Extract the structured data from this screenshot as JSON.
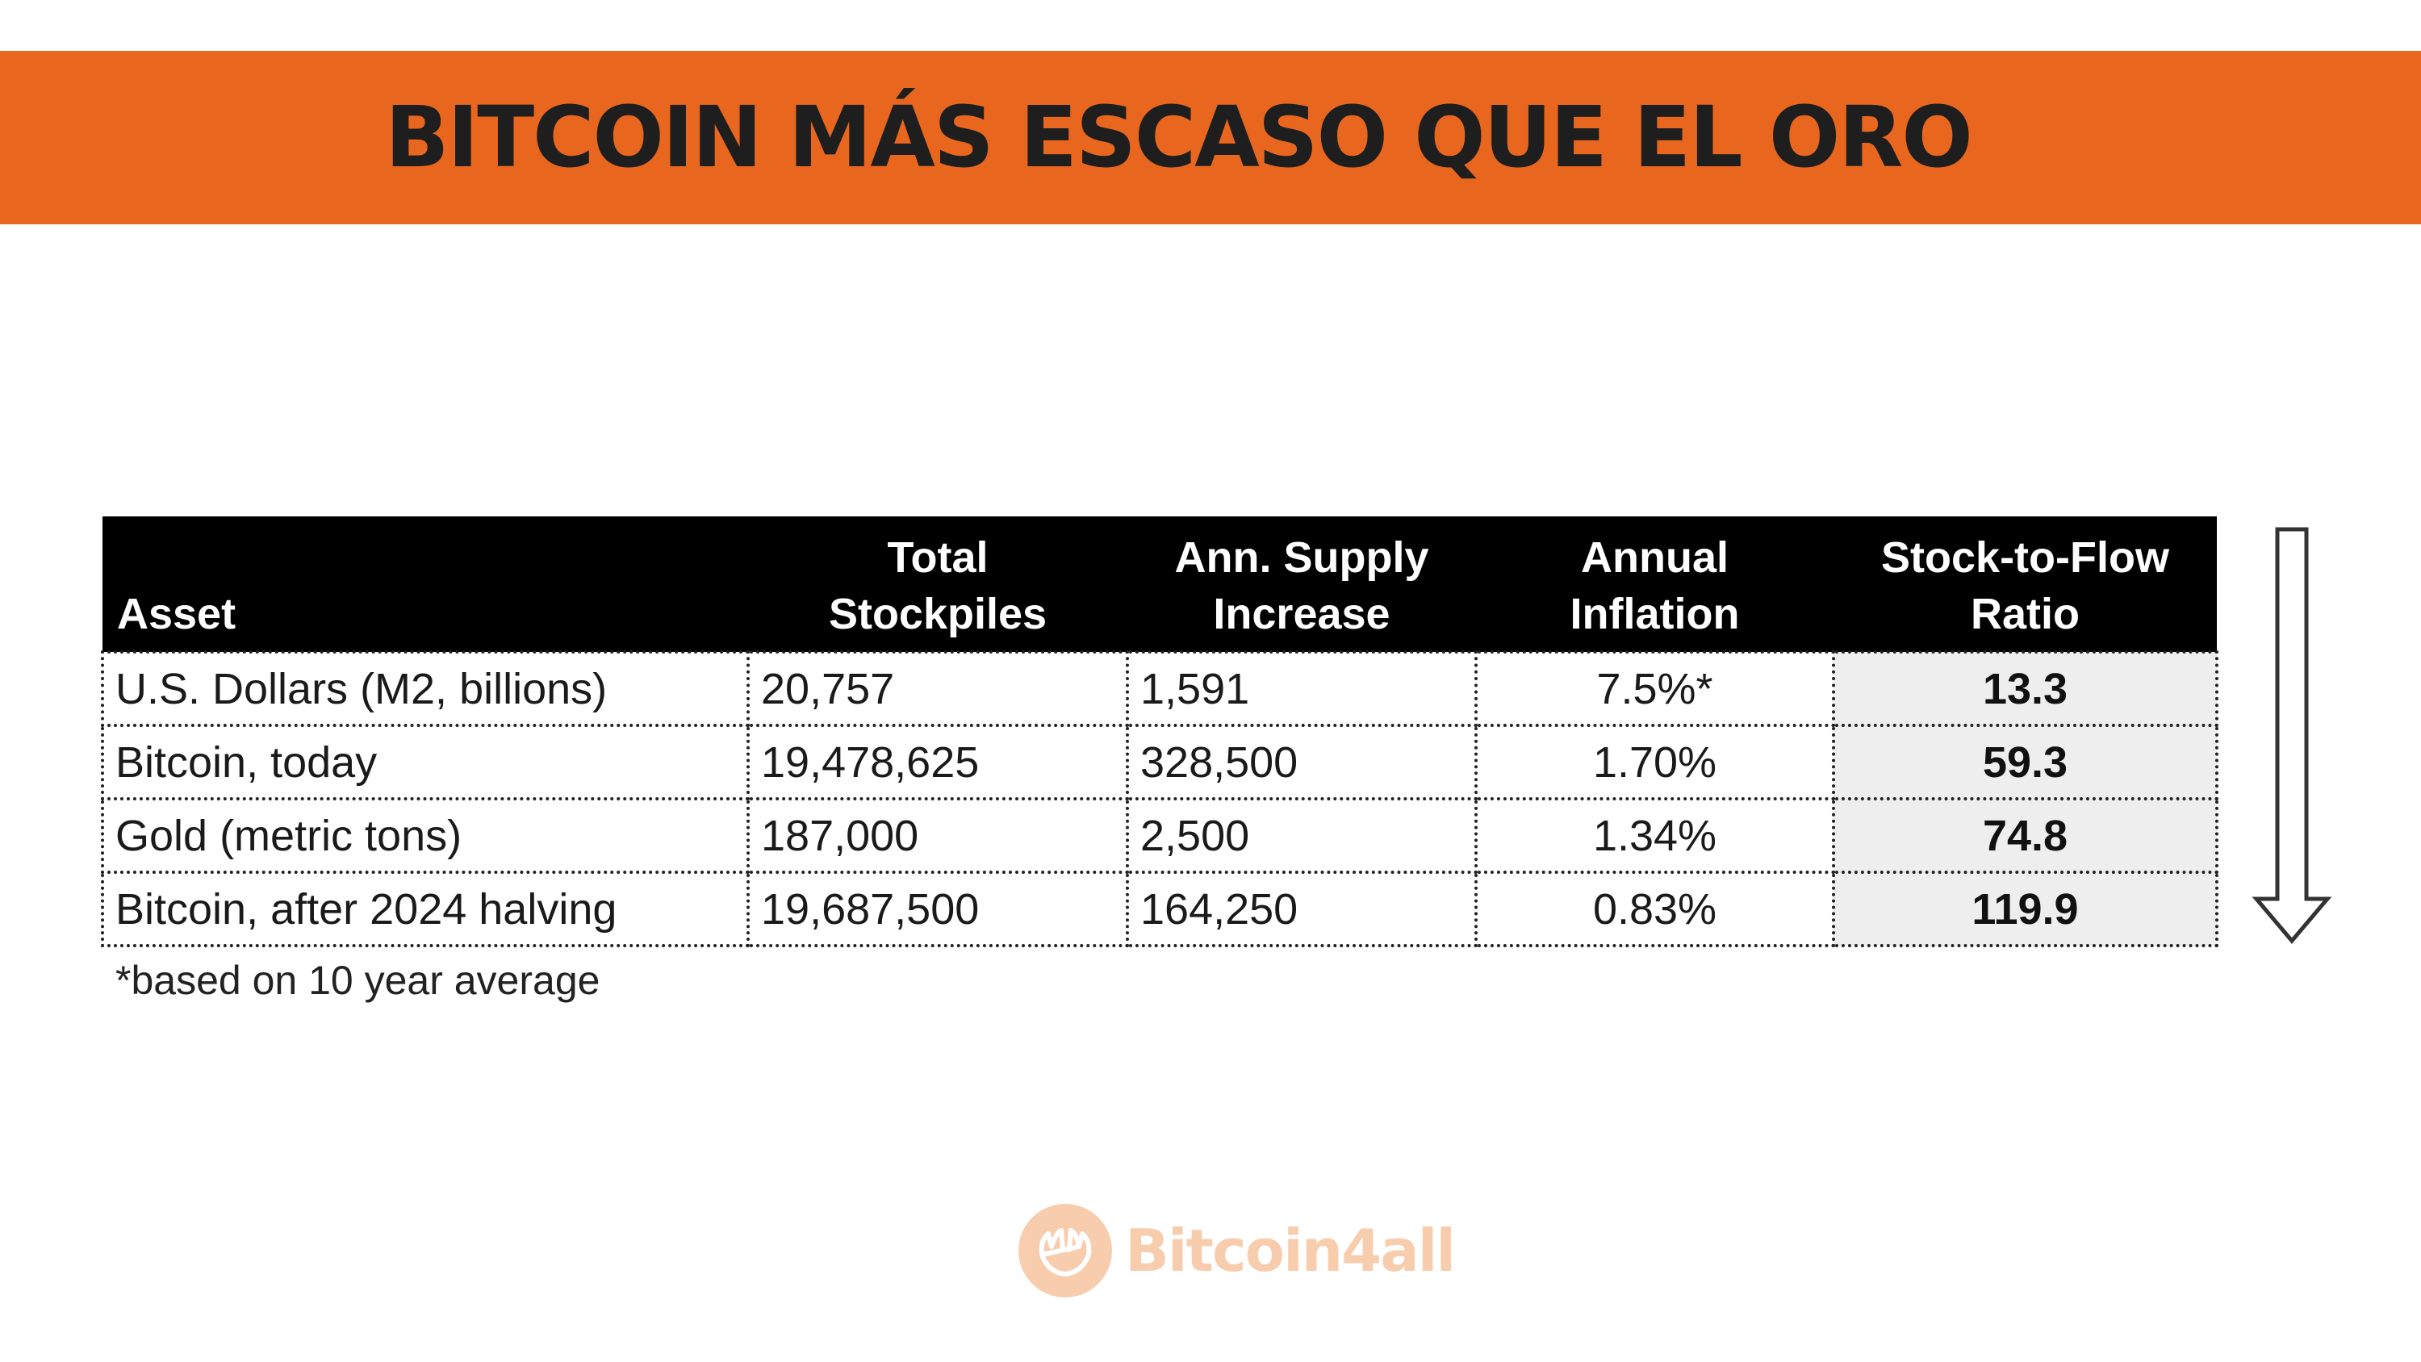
{
  "header": {
    "title": "BITCOIN MÁS ESCASO QUE EL ORO",
    "color": "#e8661e"
  },
  "table": {
    "columns": [
      "Asset",
      "Total Stockpiles",
      "Ann. Supply Increase",
      "Annual Inflation",
      "Stock-to-Flow Ratio"
    ],
    "header_lines": [
      [
        "Asset"
      ],
      [
        "Total",
        "Stockpiles"
      ],
      [
        "Ann. Supply",
        "Increase"
      ],
      [
        "Annual",
        "Inflation"
      ],
      [
        "Stock-to-Flow",
        "Ratio"
      ]
    ],
    "rows": [
      [
        "U.S. Dollars (M2, billions)",
        "20,757",
        "1,591",
        "7.5%*",
        "13.3"
      ],
      [
        "Bitcoin, today",
        "19,478,625",
        "328,500",
        "1.70%",
        "59.3"
      ],
      [
        "Gold (metric tons)",
        "187,000",
        "2,500",
        "1.34%",
        "74.8"
      ],
      [
        "Bitcoin, after 2024 halving",
        "19,687,500",
        "164,250",
        "0.83%",
        "119.9"
      ]
    ],
    "footnote": "*based on 10 year average"
  },
  "decor": {
    "arrow_icon": "down-arrow-icon",
    "logo_icon": "hands-logo-icon"
  },
  "brand": {
    "name": "Bitcoin4all",
    "color": "#f08a3e"
  }
}
